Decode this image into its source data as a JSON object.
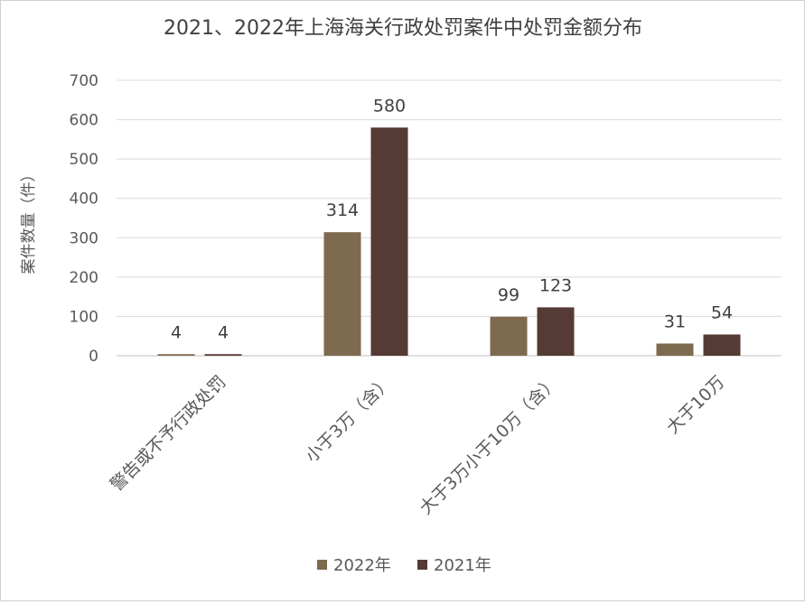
{
  "chart_data": {
    "type": "bar",
    "title": "2021、2022年上海海关行政处罚案件中处罚金额分布",
    "xlabel": "",
    "ylabel": "案件数量（件）",
    "ylim": [
      0,
      700
    ],
    "yticks": [
      0,
      100,
      200,
      300,
      400,
      500,
      600,
      700
    ],
    "grid": true,
    "legend_position": "bottom",
    "categories": [
      "警告或不予行政处罚",
      "小于3万（含）",
      "大于3万小于10万（含）",
      "大于10万"
    ],
    "series": [
      {
        "name": "2022年",
        "color": "#7e6a4f",
        "values": [
          4,
          314,
          99,
          31
        ]
      },
      {
        "name": "2021年",
        "color": "#553a35",
        "values": [
          4,
          580,
          123,
          54
        ]
      }
    ]
  }
}
